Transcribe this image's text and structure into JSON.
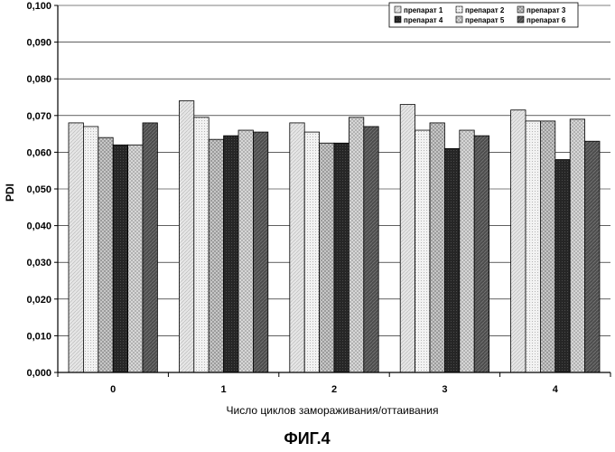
{
  "figure_label": "ФИГ.4",
  "chart_data": {
    "type": "bar",
    "title": "",
    "xlabel": "Число циклов замораживания/оттаивания",
    "ylabel": "PDI",
    "ylim": [
      0,
      0.1
    ],
    "ytick_step": 0.01,
    "ytick_labels": [
      "0,000",
      "0,010",
      "0,020",
      "0,030",
      "0,040",
      "0,050",
      "0,060",
      "0,070",
      "0,080",
      "0,090",
      "0,100"
    ],
    "grid": "horizontal",
    "legend_position": "top-right",
    "categories": [
      "0",
      "1",
      "2",
      "3",
      "4"
    ],
    "series": [
      {
        "name": "препарат 1",
        "values": [
          0.068,
          0.074,
          0.068,
          0.073,
          0.0715
        ]
      },
      {
        "name": "препарат 2",
        "values": [
          0.067,
          0.0695,
          0.0655,
          0.066,
          0.0685
        ]
      },
      {
        "name": "препарат 3",
        "values": [
          0.064,
          0.0635,
          0.0625,
          0.068,
          0.0685
        ]
      },
      {
        "name": "препарат 4",
        "values": [
          0.062,
          0.0645,
          0.0625,
          0.061,
          0.058
        ]
      },
      {
        "name": "препарат 5",
        "values": [
          0.062,
          0.066,
          0.0695,
          0.066,
          0.069
        ]
      },
      {
        "name": "препарат 6",
        "values": [
          0.068,
          0.0655,
          0.067,
          0.0645,
          0.063
        ]
      }
    ]
  }
}
